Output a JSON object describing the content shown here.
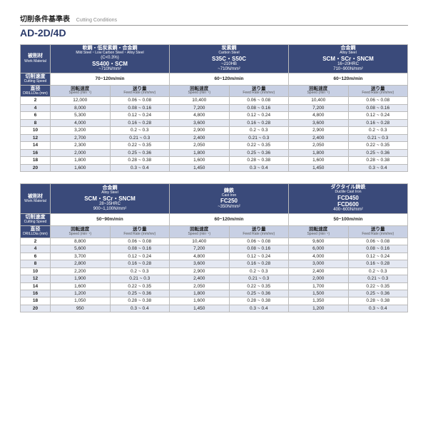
{
  "doc": {
    "title_jp": "切削条件基準表",
    "title_en": "Cutting Conditions",
    "model": "AD-2D/4D"
  },
  "labels": {
    "work_mat_jp": "被削材",
    "work_mat_en": "Work Material",
    "cut_speed_jp": "切削速度",
    "cut_speed_en": "Cutting Speed",
    "diam_jp": "直径",
    "diam_en": "DRILLDia (mm)",
    "speed_jp": "回転速度",
    "speed_en": "Speed (min⁻¹)",
    "feed_jp": "送り量",
    "feed_en": "Feed Rate (mm/rev)"
  },
  "tables": [
    {
      "materials": [
        {
          "jp": "軟鋼・低炭素鋼・合金鋼",
          "en": "Mild Steel・Low Carbon Steel・Alloy Steel",
          "grade": "(C<0.3%)",
          "spec": "SS400・SCM",
          "hard": "~710N/mm²",
          "speed": "70~120m/min"
        },
        {
          "jp": "炭素鋼",
          "en": "Carbon Steel",
          "grade": "",
          "spec": "S35C・S50C",
          "hard": "~210HB\n~710N/mm²",
          "speed": "60~120m/min"
        },
        {
          "jp": "合金鋼",
          "en": "Alloy Steel",
          "grade": "",
          "spec": "SCM・SCr・SNCM",
          "hard": "16~20HRC\n710~900N/mm²",
          "speed": "60~120m/min"
        }
      ],
      "rows": [
        {
          "d": "2",
          "c": [
            [
              "12,000",
              "0.06 ~ 0.08"
            ],
            [
              "10,400",
              "0.06 ~ 0.08"
            ],
            [
              "10,400",
              "0.06 ~ 0.08"
            ]
          ]
        },
        {
          "d": "4",
          "c": [
            [
              "8,000",
              "0.08 ~ 0.16"
            ],
            [
              "7,200",
              "0.08 ~ 0.16"
            ],
            [
              "7,200",
              "0.08 ~ 0.16"
            ]
          ]
        },
        {
          "d": "6",
          "c": [
            [
              "5,300",
              "0.12 ~ 0.24"
            ],
            [
              "4,800",
              "0.12 ~ 0.24"
            ],
            [
              "4,800",
              "0.12 ~ 0.24"
            ]
          ]
        },
        {
          "d": "8",
          "c": [
            [
              "4,000",
              "0.16 ~ 0.28"
            ],
            [
              "3,600",
              "0.16 ~ 0.28"
            ],
            [
              "3,600",
              "0.16 ~ 0.28"
            ]
          ]
        },
        {
          "d": "10",
          "c": [
            [
              "3,200",
              "0.2  ~ 0.3"
            ],
            [
              "2,900",
              "0.2  ~ 0.3"
            ],
            [
              "2,900",
              "0.2  ~ 0.3"
            ]
          ]
        },
        {
          "d": "12",
          "c": [
            [
              "2,700",
              "0.21 ~ 0.3"
            ],
            [
              "2,400",
              "0.21 ~ 0.3"
            ],
            [
              "2,400",
              "0.21 ~ 0.3"
            ]
          ]
        },
        {
          "d": "14",
          "c": [
            [
              "2,300",
              "0.22 ~ 0.35"
            ],
            [
              "2,050",
              "0.22 ~ 0.35"
            ],
            [
              "2,050",
              "0.22 ~ 0.35"
            ]
          ]
        },
        {
          "d": "16",
          "c": [
            [
              "2,000",
              "0.25 ~ 0.36"
            ],
            [
              "1,800",
              "0.25 ~ 0.36"
            ],
            [
              "1,800",
              "0.25 ~ 0.36"
            ]
          ]
        },
        {
          "d": "18",
          "c": [
            [
              "1,800",
              "0.28 ~ 0.38"
            ],
            [
              "1,600",
              "0.28 ~ 0.38"
            ],
            [
              "1,600",
              "0.28 ~ 0.38"
            ]
          ]
        },
        {
          "d": "20",
          "c": [
            [
              "1,600",
              "0.3  ~ 0.4"
            ],
            [
              "1,450",
              "0.3  ~ 0.4"
            ],
            [
              "1,450",
              "0.3  ~ 0.4"
            ]
          ]
        }
      ]
    },
    {
      "materials": [
        {
          "jp": "合金鋼",
          "en": "Alloy Steel",
          "grade": "",
          "spec": "SCM・SCr・SNCM",
          "hard": "28~35HRC\n900~1,100N/mm²",
          "speed": "50~90m/min"
        },
        {
          "jp": "鋳鉄",
          "en": "Cast Iron",
          "grade": "",
          "spec": "FC250",
          "hard": "~350N/mm²",
          "speed": "60~120m/min"
        },
        {
          "jp": "ダクタイル鋳鉄",
          "en": "Ductile Cast Iron",
          "grade": "",
          "spec": "FCD450\nFCD600",
          "hard": "400~600N/mm²",
          "speed": "50~100m/min"
        }
      ],
      "rows": [
        {
          "d": "2",
          "c": [
            [
              "8,800",
              "0.06 ~ 0.08"
            ],
            [
              "10,400",
              "0.06 ~ 0.08"
            ],
            [
              "9,600",
              "0.06 ~ 0.08"
            ]
          ]
        },
        {
          "d": "4",
          "c": [
            [
              "5,600",
              "0.08 ~ 0.16"
            ],
            [
              "7,200",
              "0.08 ~ 0.16"
            ],
            [
              "6,000",
              "0.08 ~ 0.16"
            ]
          ]
        },
        {
          "d": "6",
          "c": [
            [
              "3,700",
              "0.12 ~ 0.24"
            ],
            [
              "4,800",
              "0.12 ~ 0.24"
            ],
            [
              "4,000",
              "0.12 ~ 0.24"
            ]
          ]
        },
        {
          "d": "8",
          "c": [
            [
              "2,800",
              "0.16 ~ 0.28"
            ],
            [
              "3,600",
              "0.16 ~ 0.28"
            ],
            [
              "3,000",
              "0.16 ~ 0.28"
            ]
          ]
        },
        {
          "d": "10",
          "c": [
            [
              "2,200",
              "0.2  ~ 0.3"
            ],
            [
              "2,900",
              "0.2  ~ 0.3"
            ],
            [
              "2,400",
              "0.2  ~ 0.3"
            ]
          ]
        },
        {
          "d": "12",
          "c": [
            [
              "1,900",
              "0.21 ~ 0.3"
            ],
            [
              "2,400",
              "0.21 ~ 0.3"
            ],
            [
              "2,000",
              "0.21 ~ 0.3"
            ]
          ]
        },
        {
          "d": "14",
          "c": [
            [
              "1,600",
              "0.22 ~ 0.35"
            ],
            [
              "2,050",
              "0.22 ~ 0.35"
            ],
            [
              "1,700",
              "0.22 ~ 0.35"
            ]
          ]
        },
        {
          "d": "16",
          "c": [
            [
              "1,200",
              "0.25 ~ 0.36"
            ],
            [
              "1,800",
              "0.25 ~ 0.36"
            ],
            [
              "1,500",
              "0.25 ~ 0.36"
            ]
          ]
        },
        {
          "d": "18",
          "c": [
            [
              "1,050",
              "0.28 ~ 0.38"
            ],
            [
              "1,600",
              "0.28 ~ 0.38"
            ],
            [
              "1,350",
              "0.28 ~ 0.38"
            ]
          ]
        },
        {
          "d": "20",
          "c": [
            [
              "950",
              "0.3  ~ 0.4"
            ],
            [
              "1,450",
              "0.3  ~ 0.4"
            ],
            [
              "1,200",
              "0.3  ~ 0.4"
            ]
          ]
        }
      ]
    }
  ]
}
